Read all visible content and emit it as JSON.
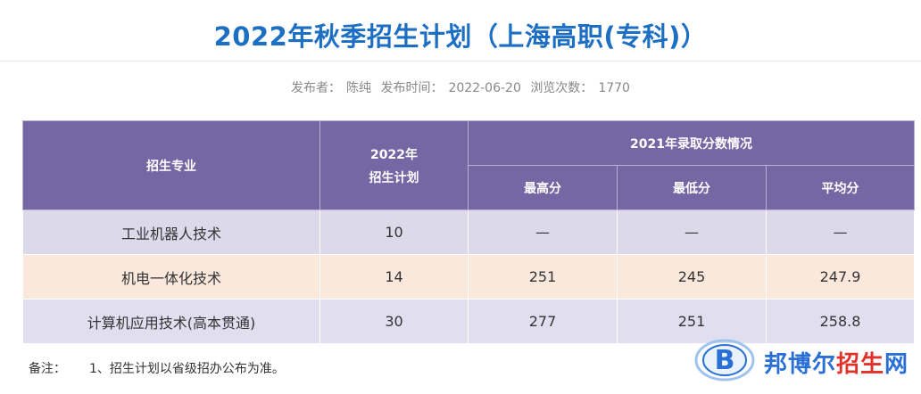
{
  "page": {
    "title": "2022年秋季招生计划（上海高职(专科)）"
  },
  "meta": {
    "publisher_label": "发布者：",
    "publisher": "陈纯",
    "time_label": "发布时间：",
    "time": "2022-06-20",
    "views_label": "浏览次数：",
    "views": "1770"
  },
  "table": {
    "headers": {
      "major": "招生专业",
      "plan_line1": "2022年",
      "plan_line2": "招生计划",
      "scores_group": "2021年录取分数情况",
      "max": "最高分",
      "min": "最低分",
      "avg": "平均分"
    },
    "rows": [
      {
        "major": "工业机器人技术",
        "plan": "10",
        "max": "—",
        "min": "—",
        "avg": "—"
      },
      {
        "major": "机电一体化技术",
        "plan": "14",
        "max": "251",
        "min": "245",
        "avg": "247.9"
      },
      {
        "major": "计算机应用技术(高本贯通)",
        "plan": "30",
        "max": "277",
        "min": "251",
        "avg": "258.8"
      }
    ]
  },
  "note": {
    "label": "备注：",
    "text": "1、招生计划以省级招办公布为准。"
  },
  "watermark": {
    "text_main": "邦博尔",
    "text_accent": "招生",
    "text_tail": "网",
    "icon": "b-logo-icon"
  },
  "colors": {
    "title": "#1d6fc4",
    "header_bg": "#7566a4",
    "row_purple": "#dcd9ea",
    "row_peach": "#fae8dc",
    "watermark_blue": "#2a6fd6",
    "watermark_red": "#e0322a"
  }
}
